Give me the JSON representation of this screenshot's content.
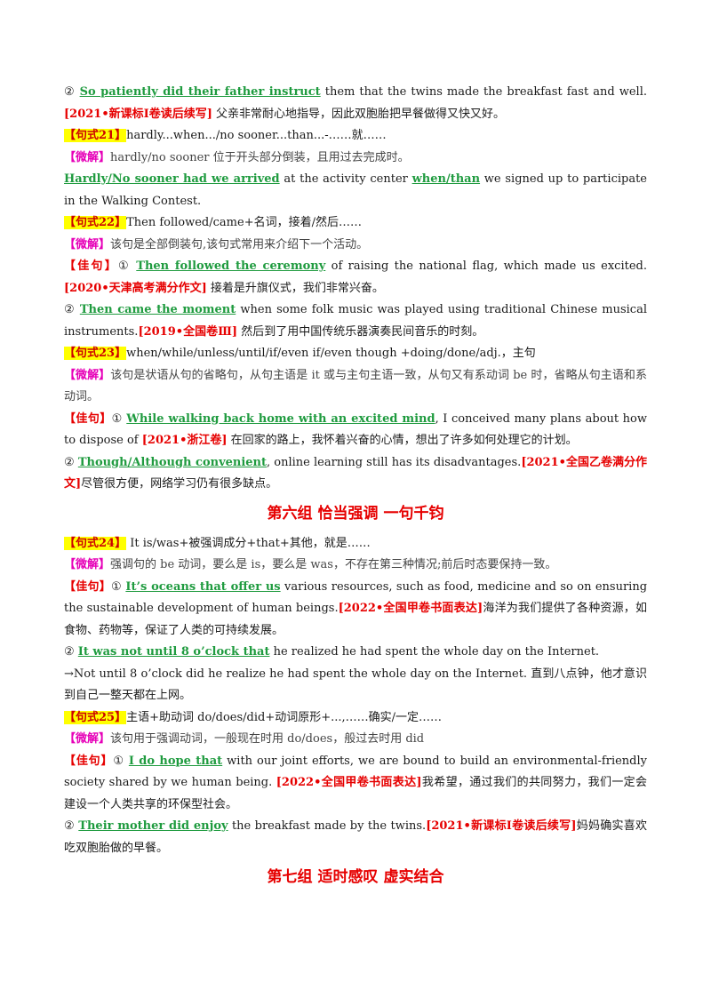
{
  "blocks": {
    "b1": {
      "num": "②",
      "key": "So patiently did their father instruct",
      "text": " them that the twins made the breakfast fast and well.",
      "src": "[2021•新课标Ⅰ卷读后续写]",
      "trans": " 父亲非常耐心地指导，因此双胞胎把早餐做得又快又好。"
    },
    "p21": {
      "tag": "【句式21】",
      "text": "hardly...when.../no sooner...than...-……就……"
    },
    "t21": {
      "tip": "【微解】",
      "text": "hardly/no sooner 位于开头部分倒装，且用过去完成时。"
    },
    "e21": {
      "key1": "Hardly/No sooner had we arrived",
      "text1": " at the activity center ",
      "key2": "when/than",
      "text2": " we signed up to participate in the Walking Contest."
    },
    "p22": {
      "tag": "【句式22】",
      "text": "Then followed/came+名词，接着/然后……"
    },
    "t22": {
      "tip": "【微解】",
      "text": "该句是全部倒装句,该句式常用来介绍下一个活动。"
    },
    "e22a": {
      "good": "【佳句】",
      "num": "①",
      "key": "Then followed the ceremony",
      "text": " of raising the national flag, which made us excited.",
      "src": "[2020•天津高考满分作文]",
      "trans": " 接着是升旗仪式，我们非常兴奋。"
    },
    "e22b": {
      "num": "②",
      "key": "Then came the moment",
      "text": " when some folk music was played using traditional Chinese musical instruments.",
      "src": "[2019•全国卷Ⅲ]",
      "trans": " 然后到了用中国传统乐器演奏民间音乐的时刻。"
    },
    "p23": {
      "tag": "【句式23】",
      "text": "when/while/unless/until/if/even if/even though +doing/done/adj.，主句"
    },
    "t23": {
      "tip": "【微解】",
      "text": "该句是状语从句的省略句，从句主语是 it 或与主句主语一致，从句又有系动词 be 时，省略从句主语和系动词。"
    },
    "e23a": {
      "good": "【佳句】",
      "num": "①",
      "key": "While walking back home with an excited mind",
      "text": ", I conceived many plans about how to dispose of ",
      "src": "[2021•浙江卷]",
      "trans": " 在回家的路上，我怀着兴奋的心情，想出了许多如何处理它的计划。"
    },
    "e23b": {
      "num": "②",
      "key": "Though/Although convenient",
      "text": ", online learning still has its disadvantages.",
      "src": "[2021•全国乙卷满分作文]",
      "trans": "尽管很方便，网络学习仍有很多缺点。"
    },
    "h6": {
      "a": "第六组",
      "b": "恰当强调",
      "c": "一句千钧"
    },
    "p24": {
      "tag": "【句式24】",
      "text": " It is/was+被强调成分+that+其他，就是……"
    },
    "t24": {
      "tip": "【微解】",
      "text": "强调句的 be 动词，要么是 is，要么是 was，不存在第三种情况;前后时态要保持一致。"
    },
    "e24a": {
      "good": "【佳句】",
      "num": "①",
      "key": "It’s oceans that offer us",
      "text": " various resources, such as food, medicine and so on ensuring the sustainable development of human beings.",
      "src": "[2022•全国甲卷书面表达]",
      "trans": "海洋为我们提供了各种资源，如食物、药物等，保证了人类的可持续发展。"
    },
    "e24b": {
      "num": "②",
      "key": "It was not until 8 o’clock that",
      "text": " he realized he had spent the whole day on the Internet."
    },
    "e24c": {
      "text": "→Not until 8 o’clock did he realize he had spent the whole day on the Internet.",
      "trans": "  直到八点钟，他才意识到自己一整天都在上网。"
    },
    "p25": {
      "tag": "【句式25】",
      "text": "主语+助动词 do/does/did+动词原形+...,……确实/一定……"
    },
    "t25": {
      "tip": "【微解】",
      "text": "该句用于强调动词，一般现在时用 do/does，般过去时用 did"
    },
    "e25a": {
      "good": "【佳句】",
      "num": "①",
      "key": "I do hope that",
      "text": " with our joint efforts, we are bound to build an environmental-friendly society shared by we human being.",
      "src": "[2022•全国甲卷书面表达]",
      "trans": "我希望，通过我们的共同努力，我们一定会建设一个人类共享的环保型社会。"
    },
    "e25b": {
      "num": "②",
      "key": "Their mother did enjoy",
      "text": " the breakfast made by the twins.",
      "src": "[2021•新课标Ⅰ卷读后续写]",
      "trans": "妈妈确实喜欢吃双胞胎做的早餐。"
    },
    "h7": {
      "a": "第七组",
      "b": "适时感叹",
      "c": "虚实结合"
    }
  }
}
